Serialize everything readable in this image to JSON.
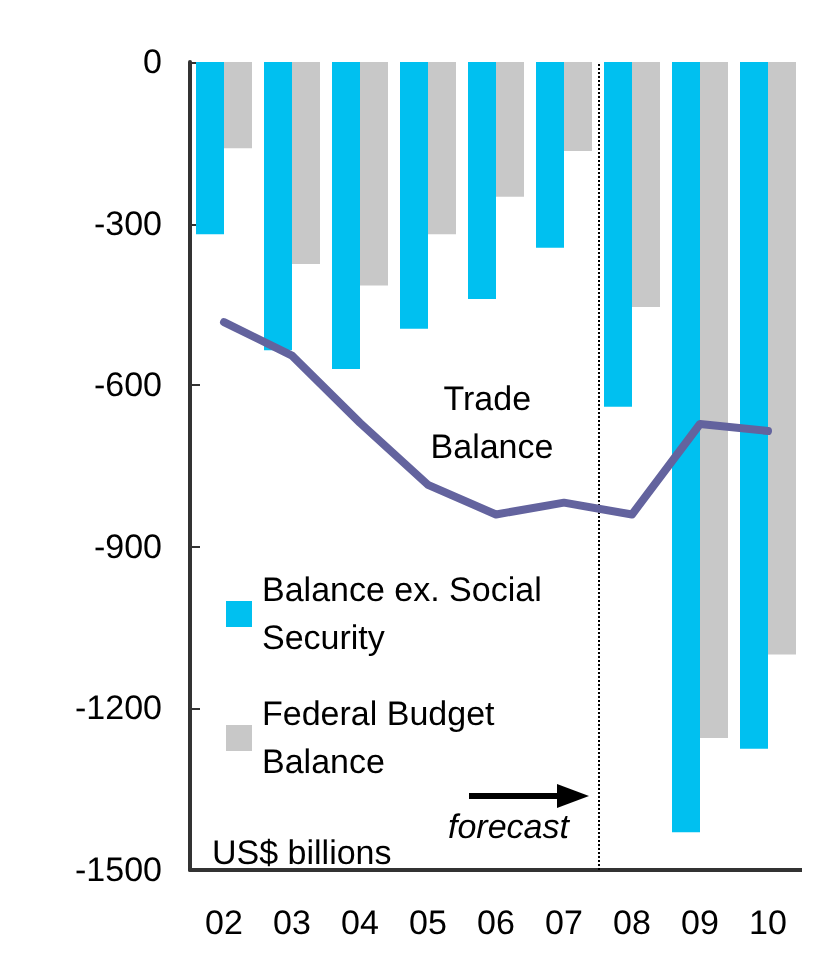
{
  "chart_data": {
    "type": "bar",
    "x": [
      2,
      3,
      4,
      5,
      6,
      7,
      8,
      9,
      10
    ],
    "xlim": [
      1.5,
      10.5
    ],
    "xticks": [
      {
        "value": 2,
        "label": "02"
      },
      {
        "value": 3,
        "label": "03"
      },
      {
        "value": 4,
        "label": "04"
      },
      {
        "value": 5,
        "label": "05"
      },
      {
        "value": 6,
        "label": "06"
      },
      {
        "value": 7,
        "label": "07"
      },
      {
        "value": 8,
        "label": "08"
      },
      {
        "value": 9,
        "label": "09"
      },
      {
        "value": 10,
        "label": "10"
      }
    ],
    "ylim": [
      -1500,
      0
    ],
    "yticks": [
      -1500,
      -1200,
      -900,
      -600,
      -300,
      0
    ],
    "series": [
      {
        "name": "Balance ex. Social Security",
        "color": "#00c0f0",
        "values": [
          -320,
          -535,
          -570,
          -495,
          -440,
          -345,
          -640,
          -1430,
          -1275
        ]
      },
      {
        "name": "Federal Budget Balance",
        "color": "#c8c8c8",
        "values": [
          -160,
          -375,
          -415,
          -320,
          -250,
          -165,
          -455,
          -1255,
          -1100
        ]
      },
      {
        "name": "Trade Balance",
        "type": "line",
        "color": "#63639e",
        "values": [
          -483,
          -545,
          -670,
          -785,
          -840,
          -818,
          -840,
          -672,
          -685
        ]
      }
    ],
    "ref_lines": [
      {
        "axis": "x",
        "value": 7.5,
        "line_style": "dotted",
        "color": "#000000"
      }
    ],
    "annotations": [
      "US$ billions",
      "forecast"
    ],
    "legend": "left",
    "grid": false,
    "marker": "none"
  }
}
